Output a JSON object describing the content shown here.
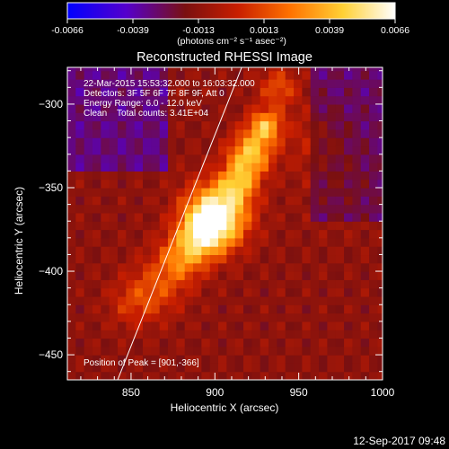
{
  "chart_data": {
    "type": "heatmap",
    "title": "Reconstructed RHESSI Image",
    "xlabel": "Heliocentric X (arcsec)",
    "ylabel": "Heliocentric Y (arcsec)",
    "xlim": [
      812,
      1000
    ],
    "ylim": [
      -465,
      -278
    ],
    "xticks": [
      850,
      900,
      950,
      1000
    ],
    "yticks": [
      -300,
      -350,
      -400,
      -450
    ],
    "colorbar": {
      "range": [
        -0.0066,
        0.0066
      ],
      "ticks": [
        "-0.0066",
        "-0.0039",
        "-0.0013",
        "0.0013",
        "0.0039",
        "0.0066"
      ],
      "label": "(photons cm⁻² s⁻¹ asec⁻²)",
      "colormap": [
        "#0000ff",
        "#5500cc",
        "#7a1010",
        "#c81e00",
        "#ff7200",
        "#ffd034",
        "#ffffff"
      ]
    },
    "annotations": [
      "22-Mar-2015 15:53:32.000 to 16:03:32.000",
      "Detectors: 3F 5F 6F 7F 8F 9F, Att 0",
      "Energy Range: 6.0 - 12.0 keV",
      "Clean    Total counts: 3.41E+04"
    ],
    "peak_label": "Position of Peak = [901,-366]",
    "peak": [
      901,
      -366
    ],
    "limb_line": [
      [
        842,
        -465
      ],
      [
        916,
        -278
      ]
    ]
  },
  "footer": {
    "timestamp": "12-Sep-2017 09:48"
  }
}
